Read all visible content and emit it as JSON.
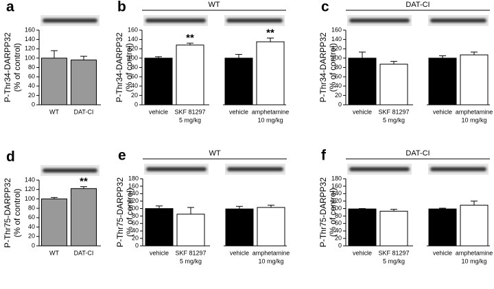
{
  "chart_data": [
    {
      "type": "bar",
      "panel": "a",
      "ylabel": [
        "P-Thr34-DARPP32",
        "(% of control)"
      ],
      "categories": [
        [
          "WT"
        ],
        [
          "DAT-CI"
        ]
      ],
      "values": [
        100,
        96
      ],
      "errors": [
        16,
        8
      ],
      "colors": [
        "#999999",
        "#999999"
      ],
      "significance": [
        null,
        null
      ],
      "ylim": [
        0,
        160
      ],
      "yticks": [
        0,
        20,
        40,
        60,
        80,
        100,
        120,
        140,
        160
      ]
    },
    {
      "type": "bar",
      "panel": "b",
      "header": "WT",
      "ylabel": [
        "P-Thr34-DARPP32",
        "(% of control)"
      ],
      "categories": [
        [
          "vehicle"
        ],
        [
          "SKF 81297",
          "5 mg/kg"
        ],
        [
          "vehicle"
        ],
        [
          "amphetamine",
          "10 mg/kg"
        ]
      ],
      "values": [
        100,
        128,
        100,
        135
      ],
      "errors": [
        3,
        4,
        8,
        8
      ],
      "colors": [
        "#000000",
        "#ffffff",
        "#000000",
        "#ffffff"
      ],
      "significance": [
        null,
        "**",
        null,
        "**"
      ],
      "ylim": [
        0,
        160
      ],
      "yticks": [
        0,
        20,
        40,
        60,
        80,
        100,
        120,
        140,
        160
      ]
    },
    {
      "type": "bar",
      "panel": "c",
      "header": "DAT-CI",
      "ylabel": [
        "P-Thr34-DARPP32",
        "(% of control)"
      ],
      "categories": [
        [
          "vehicle"
        ],
        [
          "SKF 81297",
          "5 mg/kg"
        ],
        [
          "vehicle"
        ],
        [
          "amphetamine",
          "10 mg/kg"
        ]
      ],
      "values": [
        100,
        87,
        100,
        107
      ],
      "errors": [
        13,
        6,
        5,
        6
      ],
      "colors": [
        "#000000",
        "#ffffff",
        "#000000",
        "#ffffff"
      ],
      "significance": [
        null,
        null,
        null,
        null
      ],
      "ylim": [
        0,
        160
      ],
      "yticks": [
        0,
        20,
        40,
        60,
        80,
        100,
        120,
        140,
        160
      ]
    },
    {
      "type": "bar",
      "panel": "d",
      "ylabel": [
        "P-Thr75-DARPP32",
        "(% of control)"
      ],
      "categories": [
        [
          "WT"
        ],
        [
          "DAT-CI"
        ]
      ],
      "values": [
        100,
        122
      ],
      "errors": [
        3,
        4
      ],
      "colors": [
        "#999999",
        "#999999"
      ],
      "significance": [
        null,
        "**"
      ],
      "ylim": [
        0,
        140
      ],
      "yticks": [
        0,
        20,
        40,
        60,
        80,
        100,
        120,
        140
      ]
    },
    {
      "type": "bar",
      "panel": "e",
      "header": "WT",
      "ylabel": [
        "P-Thr75-DARPP32",
        "(% of control)"
      ],
      "categories": [
        [
          "vehicle"
        ],
        [
          "SKF 81297",
          "5 mg/kg"
        ],
        [
          "vehicle"
        ],
        [
          "amphetamine",
          "10 mg/kg"
        ]
      ],
      "values": [
        100,
        85,
        99,
        103
      ],
      "errors": [
        7,
        18,
        7,
        6
      ],
      "colors": [
        "#000000",
        "#ffffff",
        "#000000",
        "#ffffff"
      ],
      "significance": [
        null,
        null,
        null,
        null
      ],
      "ylim": [
        0,
        180
      ],
      "yticks": [
        0,
        20,
        40,
        60,
        80,
        100,
        120,
        140,
        160,
        180
      ]
    },
    {
      "type": "bar",
      "panel": "f",
      "header": "DAT-CI",
      "ylabel": [
        "P-Thr75-DARPP32",
        "(% of control)"
      ],
      "categories": [
        [
          "vehicle"
        ],
        [
          "SKF 81297",
          "5 mg/kg"
        ],
        [
          "vehicle"
        ],
        [
          "amphetamine",
          "10 mg/kg"
        ]
      ],
      "values": [
        99,
        93,
        99,
        109
      ],
      "errors": [
        1,
        5,
        2,
        11
      ],
      "colors": [
        "#000000",
        "#ffffff",
        "#000000",
        "#ffffff"
      ],
      "significance": [
        null,
        null,
        null,
        null
      ],
      "ylim": [
        0,
        180
      ],
      "yticks": [
        0,
        20,
        40,
        60,
        80,
        100,
        120,
        140,
        160,
        180
      ]
    }
  ]
}
